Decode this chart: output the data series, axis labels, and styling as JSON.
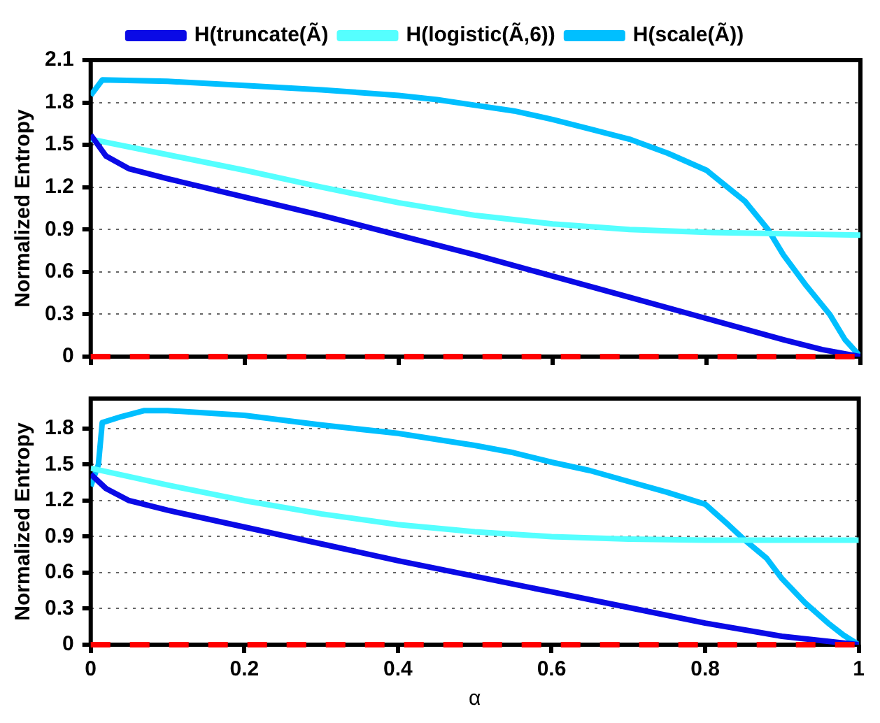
{
  "chart_data": [
    {
      "type": "line",
      "ylabel": "Normalized Entropy",
      "xlim": [
        0,
        1
      ],
      "xticks": [
        0,
        0.2,
        0.4,
        0.6,
        0.8,
        1
      ],
      "ylim": [
        0,
        2.1
      ],
      "yticks": [
        0,
        0.3,
        0.6,
        0.9,
        1.2,
        1.5,
        1.8,
        2.1
      ],
      "grid": "y",
      "legend": "top",
      "tick_labels": "y",
      "marker": "none",
      "line_style": "solid",
      "ref_lines": [
        {
          "axis": "y",
          "value": 0,
          "color": "#ff0000",
          "line_style": "dashed"
        }
      ],
      "series": [
        {
          "name": "H(truncate(Ã)",
          "color": "#0a0ae6",
          "x": [
            0,
            0.02,
            0.05,
            0.1,
            0.2,
            0.3,
            0.4,
            0.5,
            0.6,
            0.7,
            0.8,
            0.9,
            0.95,
            1
          ],
          "values": [
            1.57,
            1.42,
            1.33,
            1.26,
            1.13,
            1.0,
            0.86,
            0.72,
            0.57,
            0.42,
            0.27,
            0.12,
            0.05,
            0
          ]
        },
        {
          "name": "H(logistic(Ã,6))",
          "color": "#55ffff",
          "x": [
            0,
            0.1,
            0.2,
            0.3,
            0.4,
            0.5,
            0.6,
            0.7,
            0.8,
            0.9,
            1
          ],
          "values": [
            1.54,
            1.43,
            1.32,
            1.2,
            1.09,
            1.0,
            0.94,
            0.9,
            0.88,
            0.87,
            0.86
          ]
        },
        {
          "name": "H(scale(Ã))",
          "color": "#00bfff",
          "x": [
            0,
            0.015,
            0.1,
            0.2,
            0.3,
            0.4,
            0.45,
            0.5,
            0.55,
            0.6,
            0.65,
            0.7,
            0.75,
            0.8,
            0.85,
            0.88,
            0.9,
            0.93,
            0.96,
            0.98,
            1
          ],
          "values": [
            1.85,
            1.96,
            1.95,
            1.92,
            1.89,
            1.85,
            1.82,
            1.78,
            1.74,
            1.68,
            1.61,
            1.54,
            1.44,
            1.32,
            1.1,
            0.9,
            0.72,
            0.5,
            0.3,
            0.12,
            0
          ]
        }
      ]
    },
    {
      "type": "line",
      "ylabel": "Normalized Entropy",
      "xlabel": "α",
      "xlim": [
        0,
        1
      ],
      "xticks": [
        0,
        0.2,
        0.4,
        0.6,
        0.8,
        1
      ],
      "ylim": [
        0,
        2.05
      ],
      "yticks": [
        0,
        0.3,
        0.6,
        0.9,
        1.2,
        1.5,
        1.8
      ],
      "grid": "y",
      "marker": "none",
      "line_style": "solid",
      "ref_lines": [
        {
          "axis": "y",
          "value": 0,
          "color": "#ff0000",
          "line_style": "dashed"
        }
      ],
      "series": [
        {
          "color": "#0a0ae6",
          "x": [
            0,
            0.02,
            0.05,
            0.1,
            0.2,
            0.3,
            0.4,
            0.5,
            0.6,
            0.7,
            0.8,
            0.9,
            1
          ],
          "values": [
            1.42,
            1.3,
            1.2,
            1.12,
            0.98,
            0.84,
            0.7,
            0.57,
            0.44,
            0.31,
            0.18,
            0.07,
            0
          ]
        },
        {
          "color": "#55ffff",
          "x": [
            0,
            0.1,
            0.2,
            0.3,
            0.4,
            0.5,
            0.6,
            0.7,
            0.8,
            0.9,
            1
          ],
          "values": [
            1.47,
            1.33,
            1.2,
            1.09,
            1.0,
            0.94,
            0.9,
            0.88,
            0.87,
            0.87,
            0.87
          ]
        },
        {
          "color": "#00bfff",
          "x": [
            0,
            0.01,
            0.015,
            0.04,
            0.07,
            0.1,
            0.2,
            0.3,
            0.4,
            0.5,
            0.55,
            0.6,
            0.65,
            0.7,
            0.75,
            0.8,
            0.83,
            0.85,
            0.88,
            0.9,
            0.93,
            0.96,
            0.98,
            1
          ],
          "values": [
            1.32,
            1.5,
            1.85,
            1.9,
            1.95,
            1.95,
            1.91,
            1.83,
            1.76,
            1.66,
            1.6,
            1.52,
            1.45,
            1.36,
            1.27,
            1.17,
            1.0,
            0.88,
            0.72,
            0.55,
            0.35,
            0.18,
            0.08,
            0
          ]
        }
      ]
    }
  ]
}
